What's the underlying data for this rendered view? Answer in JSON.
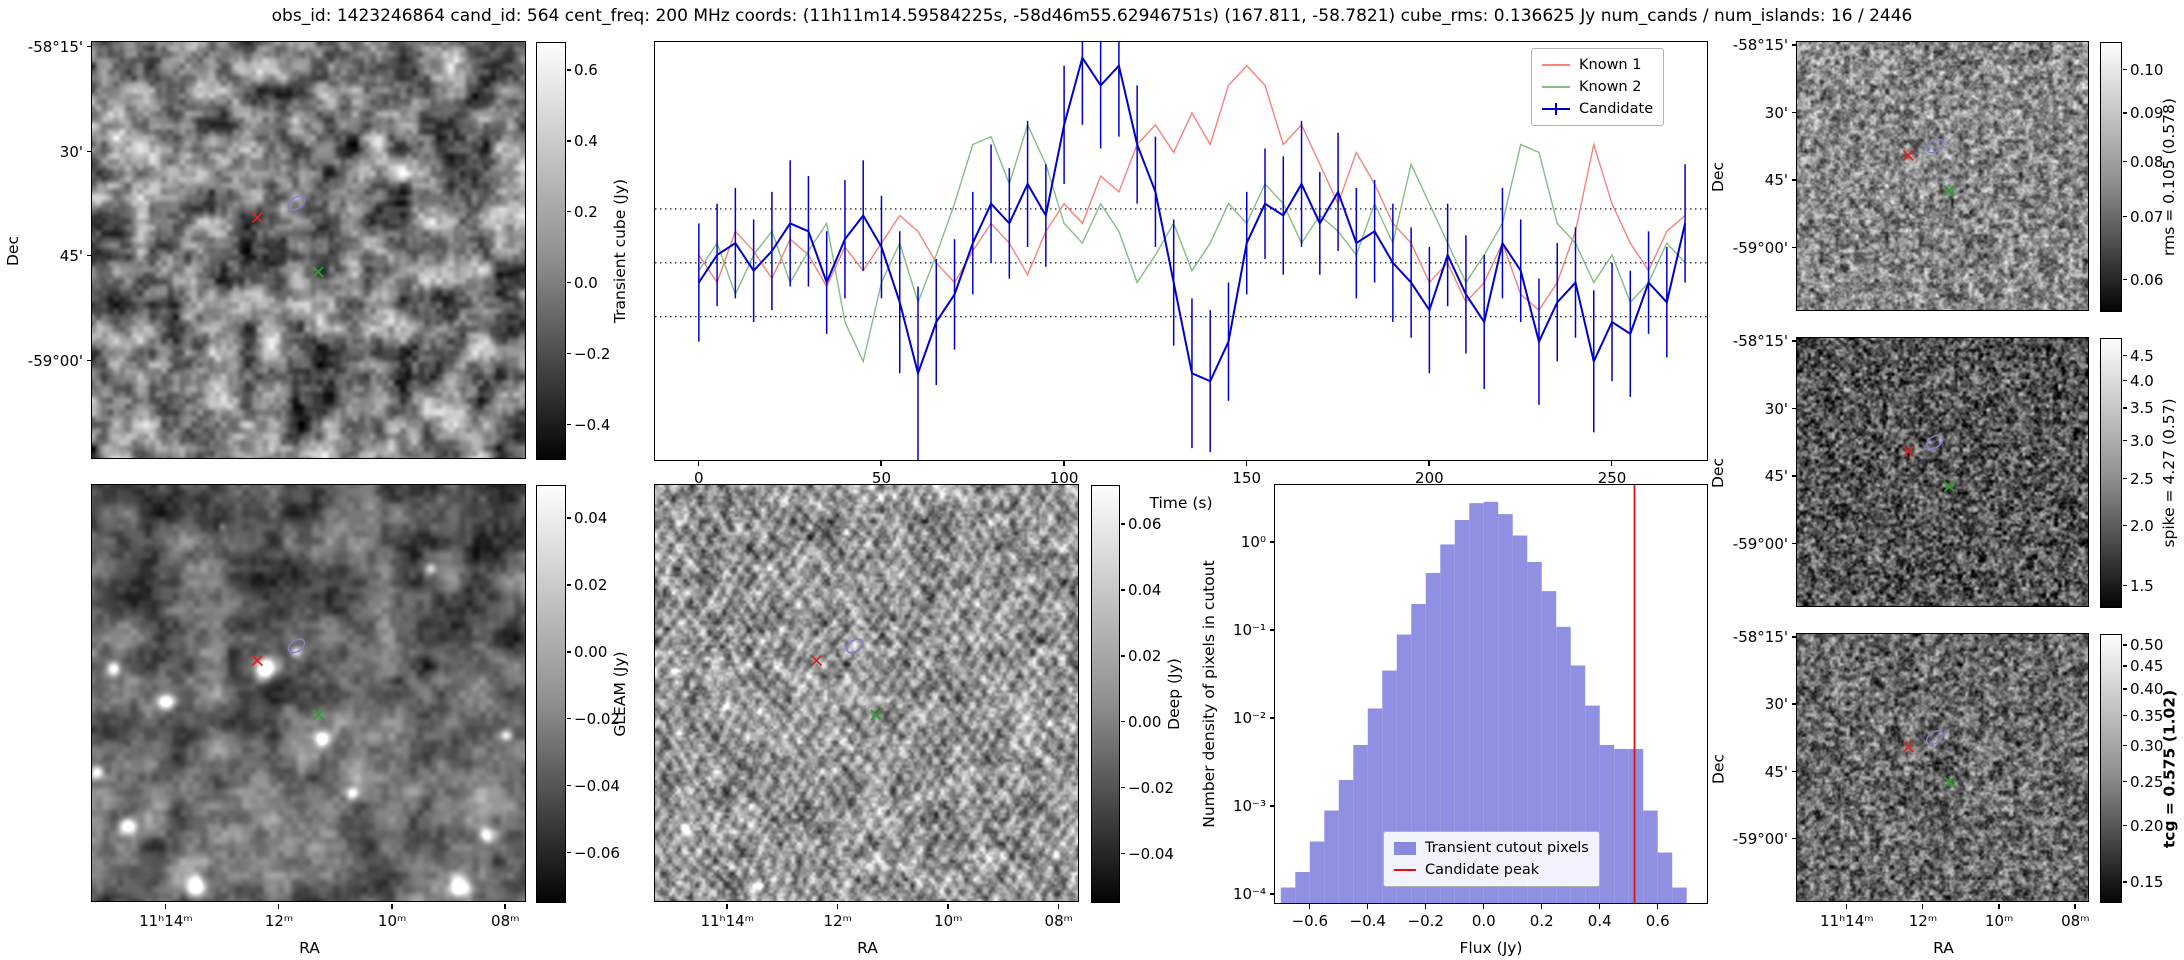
{
  "title": "obs_id: 1423246864 cand_id: 564 cent_freq: 200 MHz coords: (11h11m14.59584225s, -58d46m55.62946751s) (167.811, -58.7821) cube_rms: 0.136625 Jy num_cands / num_islands: 16 / 2446",
  "colors": {
    "known1": "#f4837d",
    "known2": "#85bd85",
    "candidate": "#0000cd",
    "threshold": "#000000",
    "hist_fill": "#7d7ddd",
    "candidate_peak": "#e01010",
    "marker_red": "#d62728",
    "marker_green": "#2ca02c",
    "source_ellipse": "#8080cc"
  },
  "axes": {
    "dec_label": "Dec",
    "ra_label": "RA",
    "dec_ticks": [
      "-58°15'",
      "30'",
      "45'",
      "-59°00'"
    ],
    "ra_ticks": [
      "11ʰ14ᵐ",
      "12ᵐ",
      "10ᵐ",
      "08ᵐ"
    ]
  },
  "markers": {
    "red_x": [
      0.38,
      0.42
    ],
    "green_x": [
      0.52,
      0.55
    ],
    "ellipse": [
      0.47,
      0.385
    ]
  },
  "cutouts": {
    "tc": {
      "colorbar": {
        "label": "Transient cube (Jy)",
        "ticks": [
          "0.6",
          "0.4",
          "0.2",
          "0.0",
          "−0.2",
          "−0.4"
        ],
        "values": [
          0.6,
          0.4,
          0.2,
          0.0,
          -0.2,
          -0.4
        ],
        "vmin": -0.5,
        "vmax": 0.68,
        "scale": "linear"
      }
    },
    "gl": {
      "colorbar": {
        "label": "GLEAM (Jy)",
        "ticks": [
          "0.04",
          "0.02",
          "0.00",
          "−0.02",
          "−0.04",
          "−0.06"
        ],
        "values": [
          0.04,
          0.02,
          0.0,
          -0.02,
          -0.04,
          -0.06
        ],
        "vmin": -0.075,
        "vmax": 0.05,
        "scale": "linear"
      }
    },
    "dp": {
      "colorbar": {
        "label": "Deep (Jy)",
        "ticks": [
          "0.06",
          "0.04",
          "0.02",
          "0.00",
          "−0.02",
          "−0.04"
        ],
        "values": [
          0.06,
          0.04,
          0.02,
          0.0,
          -0.02,
          -0.04
        ],
        "vmin": -0.055,
        "vmax": 0.072,
        "scale": "linear"
      }
    },
    "r1": {
      "colorbar": {
        "label": "rms = 0.105 (0.578)",
        "ticks": [
          "0.10",
          "0.09",
          "0.08",
          "0.07",
          "0.06"
        ],
        "values": [
          0.1,
          0.09,
          0.08,
          0.07,
          0.06
        ],
        "vmin": 0.0555,
        "vmax": 0.107,
        "scale": "log"
      }
    },
    "r2": {
      "colorbar": {
        "label": "spike = 4.27 (0.57)",
        "ticks": [
          "4.5",
          "4.0",
          "3.5",
          "3.0",
          "2.5",
          "2.0",
          "1.5"
        ],
        "values": [
          4.5,
          4.0,
          3.5,
          3.0,
          2.5,
          2.0,
          1.5
        ],
        "vmin": 1.35,
        "vmax": 4.9,
        "scale": "log"
      }
    },
    "r3": {
      "colorbar": {
        "label": "tcg = 0.575 (1.02)",
        "bold": true,
        "ticks": [
          "0.50",
          "0.45",
          "0.40",
          "0.35",
          "0.30",
          "0.25",
          "0.20",
          "0.15"
        ],
        "values": [
          0.5,
          0.45,
          0.4,
          0.35,
          0.3,
          0.25,
          0.2,
          0.15
        ],
        "vmin": 0.135,
        "vmax": 0.53,
        "scale": "log"
      }
    }
  },
  "chart_data": [
    {
      "type": "line",
      "title": "",
      "xlabel": "Time (s)",
      "ylabel": "",
      "xlim": [
        -12,
        276
      ],
      "ylim": [
        -0.5,
        0.56
      ],
      "xticks": [
        0,
        50,
        100,
        150,
        200,
        250
      ],
      "threshold_lines": [
        0.136625,
        0.0,
        -0.136625
      ],
      "legend_position": "upper right",
      "x": [
        0,
        5,
        10,
        15,
        20,
        25,
        30,
        35,
        40,
        45,
        50,
        55,
        60,
        65,
        70,
        75,
        80,
        85,
        90,
        95,
        100,
        105,
        110,
        115,
        120,
        125,
        130,
        135,
        140,
        145,
        150,
        155,
        160,
        165,
        170,
        175,
        180,
        185,
        190,
        195,
        200,
        205,
        210,
        215,
        220,
        225,
        230,
        235,
        240,
        245,
        250,
        255,
        260,
        265,
        270
      ],
      "series": [
        {
          "name": "Known 1",
          "values": [
            0.02,
            -0.05,
            0.08,
            0.03,
            -0.04,
            0.06,
            0.02,
            -0.06,
            0.04,
            -0.02,
            0.05,
            0.12,
            0.08,
            0.0,
            -0.05,
            0.03,
            0.1,
            0.05,
            -0.03,
            0.08,
            0.15,
            0.1,
            0.22,
            0.18,
            0.3,
            0.35,
            0.28,
            0.38,
            0.3,
            0.45,
            0.5,
            0.45,
            0.3,
            0.35,
            0.25,
            0.15,
            0.28,
            0.2,
            0.1,
            0.05,
            -0.05,
            0.0,
            -0.1,
            -0.05,
            0.05,
            -0.08,
            -0.12,
            -0.05,
            0.08,
            0.3,
            0.15,
            0.05,
            -0.02,
            0.08,
            0.12
          ]
        },
        {
          "name": "Known 2",
          "values": [
            -0.02,
            0.05,
            -0.08,
            0.02,
            0.08,
            -0.05,
            0.03,
            0.1,
            -0.15,
            -0.25,
            -0.05,
            0.05,
            -0.1,
            0.02,
            0.15,
            0.3,
            0.32,
            0.2,
            0.35,
            0.25,
            0.1,
            0.05,
            0.15,
            0.08,
            -0.05,
            0.02,
            0.1,
            -0.02,
            0.05,
            0.15,
            0.1,
            0.2,
            0.15,
            0.05,
            0.12,
            0.08,
            0.02,
            0.15,
            0.05,
            0.25,
            0.15,
            0.05,
            -0.05,
            0.02,
            0.1,
            0.3,
            0.28,
            0.1,
            0.05,
            -0.05,
            0.02,
            -0.1,
            -0.05,
            0.05,
            0.0
          ]
        },
        {
          "name": "Candidate",
          "values": [
            -0.05,
            0.02,
            0.05,
            -0.02,
            0.03,
            0.1,
            0.08,
            -0.05,
            0.06,
            0.12,
            0.04,
            -0.1,
            -0.28,
            -0.15,
            -0.08,
            0.05,
            0.15,
            0.1,
            0.2,
            0.12,
            0.35,
            0.52,
            0.45,
            0.5,
            0.3,
            0.18,
            -0.05,
            -0.28,
            -0.3,
            -0.2,
            0.05,
            0.15,
            0.12,
            0.2,
            0.1,
            0.18,
            0.05,
            0.08,
            0.0,
            -0.05,
            -0.12,
            0.02,
            -0.08,
            -0.15,
            0.05,
            -0.02,
            -0.2,
            -0.1,
            -0.05,
            -0.25,
            -0.15,
            -0.18,
            -0.05,
            -0.1,
            0.1
          ],
          "errors": [
            0.15,
            0.13,
            0.14,
            0.13,
            0.15,
            0.16,
            0.14,
            0.13,
            0.15,
            0.14,
            0.13,
            0.18,
            0.22,
            0.16,
            0.14,
            0.13,
            0.15,
            0.14,
            0.16,
            0.13,
            0.15,
            0.17,
            0.16,
            0.18,
            0.15,
            0.14,
            0.16,
            0.19,
            0.18,
            0.15,
            0.13,
            0.14,
            0.15,
            0.16,
            0.13,
            0.15,
            0.14,
            0.13,
            0.15,
            0.14,
            0.16,
            0.13,
            0.15,
            0.17,
            0.14,
            0.13,
            0.16,
            0.15,
            0.14,
            0.18,
            0.15,
            0.16,
            0.13,
            0.14,
            0.15
          ]
        }
      ]
    },
    {
      "type": "bar",
      "title": "",
      "xlabel": "Flux (Jy)",
      "ylabel": "Number density of pixels in cutout",
      "xlim": [
        -0.72,
        0.77
      ],
      "ylim": [
        8e-05,
        4.5
      ],
      "yscale": "log",
      "xticks": [
        "−0.6",
        "−0.4",
        "−0.2",
        "0.0",
        "0.2",
        "0.4",
        "0.6"
      ],
      "xtick_values": [
        -0.6,
        -0.4,
        -0.2,
        0.0,
        0.2,
        0.4,
        0.6
      ],
      "yticks": [
        "10⁰",
        "10⁻¹",
        "10⁻²",
        "10⁻³",
        "10⁻⁴"
      ],
      "ytick_values": [
        1,
        0.1,
        0.01,
        0.001,
        0.0001
      ],
      "bin_width": 0.05,
      "bin_centers": [
        -0.675,
        -0.625,
        -0.575,
        -0.525,
        -0.475,
        -0.425,
        -0.375,
        -0.325,
        -0.275,
        -0.225,
        -0.175,
        -0.125,
        -0.075,
        -0.025,
        0.025,
        0.075,
        0.125,
        0.175,
        0.225,
        0.275,
        0.325,
        0.375,
        0.425,
        0.475,
        0.525,
        0.575,
        0.625,
        0.675
      ],
      "densities": [
        0.00012,
        0.00018,
        0.0004,
        0.0009,
        0.002,
        0.005,
        0.013,
        0.035,
        0.09,
        0.2,
        0.45,
        0.95,
        1.8,
        2.8,
        2.9,
        2.1,
        1.2,
        0.6,
        0.28,
        0.11,
        0.04,
        0.014,
        0.005,
        0.0045,
        0.0045,
        0.0009,
        0.0003,
        0.00012
      ],
      "candidate_peak": 0.52,
      "legend": [
        "Transient cutout pixels",
        "Candidate peak"
      ]
    }
  ]
}
